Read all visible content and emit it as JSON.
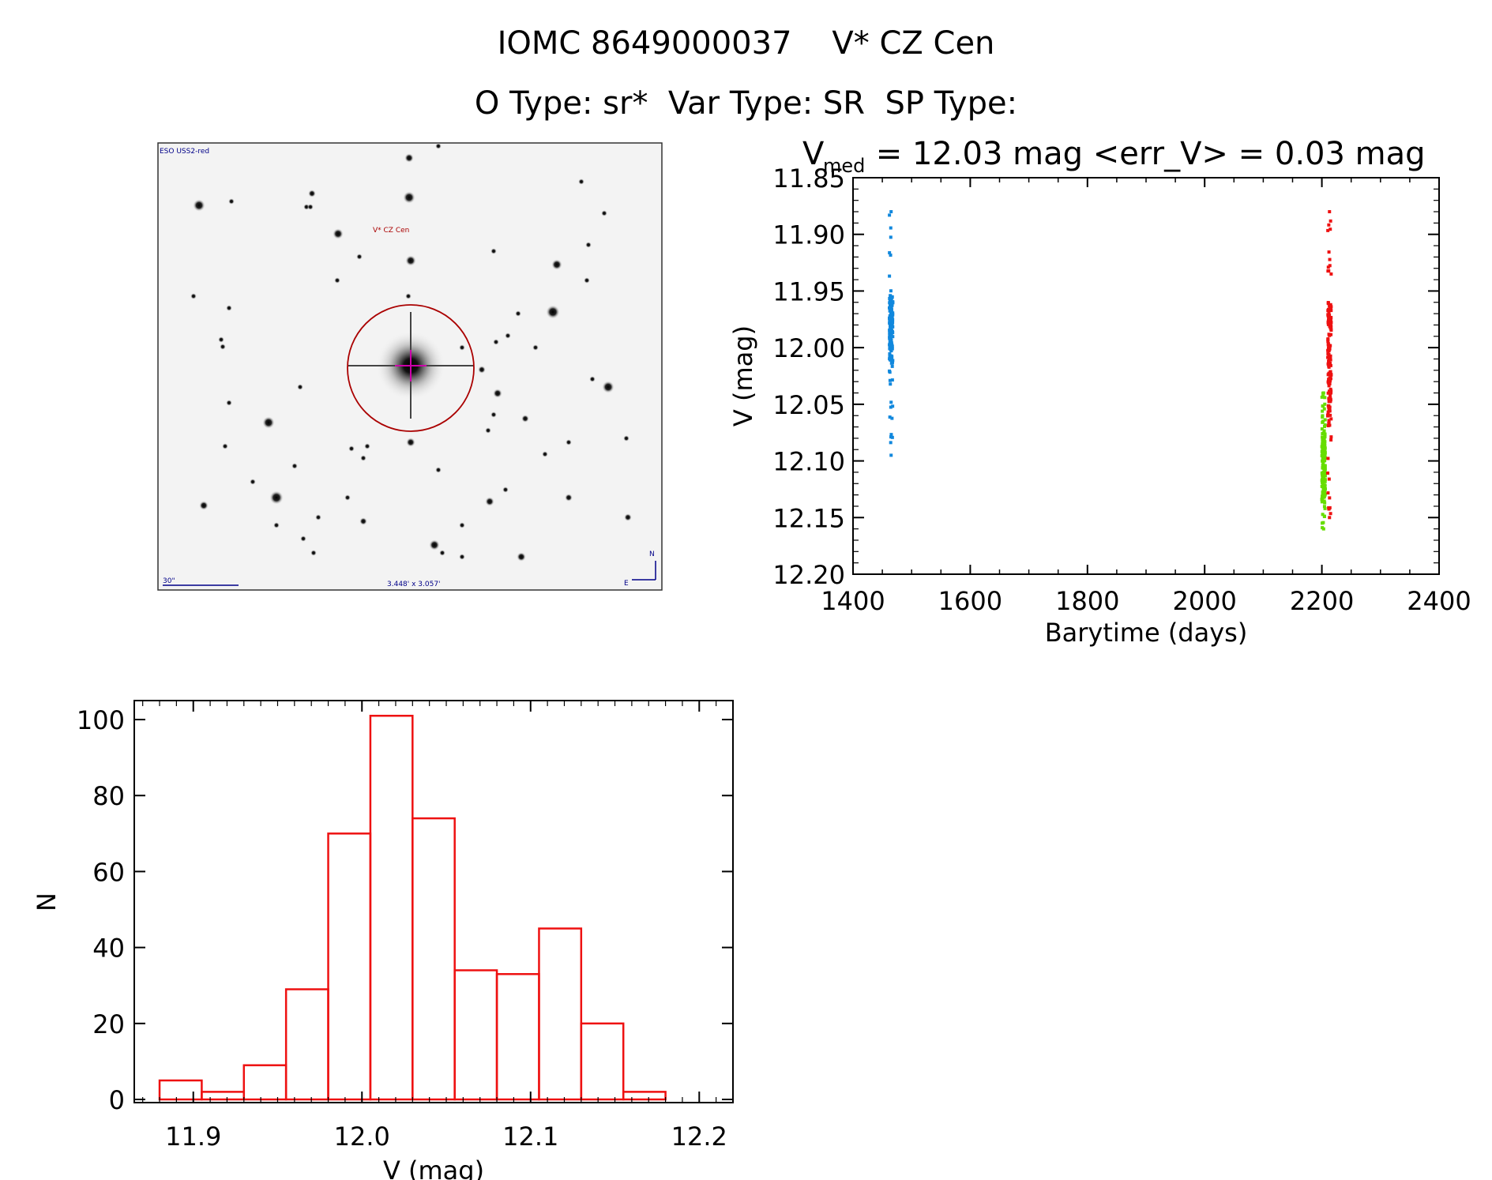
{
  "header": {
    "line1": "IOMC 8649000037    V* CZ Cen",
    "line2": "O Type: sr*  Var Type: SR  SP Type:"
  },
  "finder": {
    "survey_label": "ESO USS2-red",
    "target_label": "V* CZ Cen",
    "scale_label": "30\"",
    "size_label": "3.448' x 3.057'",
    "north_label": "N",
    "east_label": "E",
    "colors": {
      "target": "#aa0000",
      "annotation": "#000088"
    }
  },
  "chart_data": [
    {
      "type": "scatter",
      "title_prefix": "V",
      "title_subscript": "med",
      "title_rest": " = 12.03 mag <err_V> = 0.03 mag",
      "xlabel": "Barytime (days)",
      "ylabel": "V (mag)",
      "xlim": [
        1400,
        2400
      ],
      "ylim": [
        12.2,
        11.85
      ],
      "xticks": [
        1400,
        1600,
        1800,
        2000,
        2200,
        2400
      ],
      "yticks": [
        "11.85",
        "11.90",
        "11.95",
        "12.00",
        "12.05",
        "12.10",
        "12.15",
        "12.20"
      ],
      "series": [
        {
          "name": "season1",
          "color": "#1188dd",
          "x": 1465,
          "vmin": 11.88,
          "vmax": 12.095,
          "dense_min": 11.955,
          "dense_max": 12.015
        },
        {
          "name": "season2-green",
          "color": "#66dd00",
          "x": 2203,
          "vmin": 12.04,
          "vmax": 12.16,
          "dense_min": 12.075,
          "dense_max": 12.135
        },
        {
          "name": "season2-red",
          "color": "#ee1111",
          "x": 2213,
          "vmin": 11.88,
          "vmax": 12.15,
          "dense_min": 11.96,
          "dense_max": 12.07
        }
      ]
    },
    {
      "type": "bar",
      "xlabel": "V (mag)",
      "ylabel": "N",
      "xlim": [
        11.865,
        12.22
      ],
      "ylim": [
        0,
        105
      ],
      "xticks": [
        "11.9",
        "12.0",
        "12.1",
        "12.2"
      ],
      "yticks": [
        "0",
        "20",
        "40",
        "60",
        "80",
        "100"
      ],
      "bin_width": 0.025,
      "bin_edges_start": 11.88,
      "values": [
        5,
        2,
        9,
        29,
        70,
        101,
        74,
        34,
        33,
        45,
        20,
        2
      ],
      "color": "#ee1111"
    }
  ]
}
